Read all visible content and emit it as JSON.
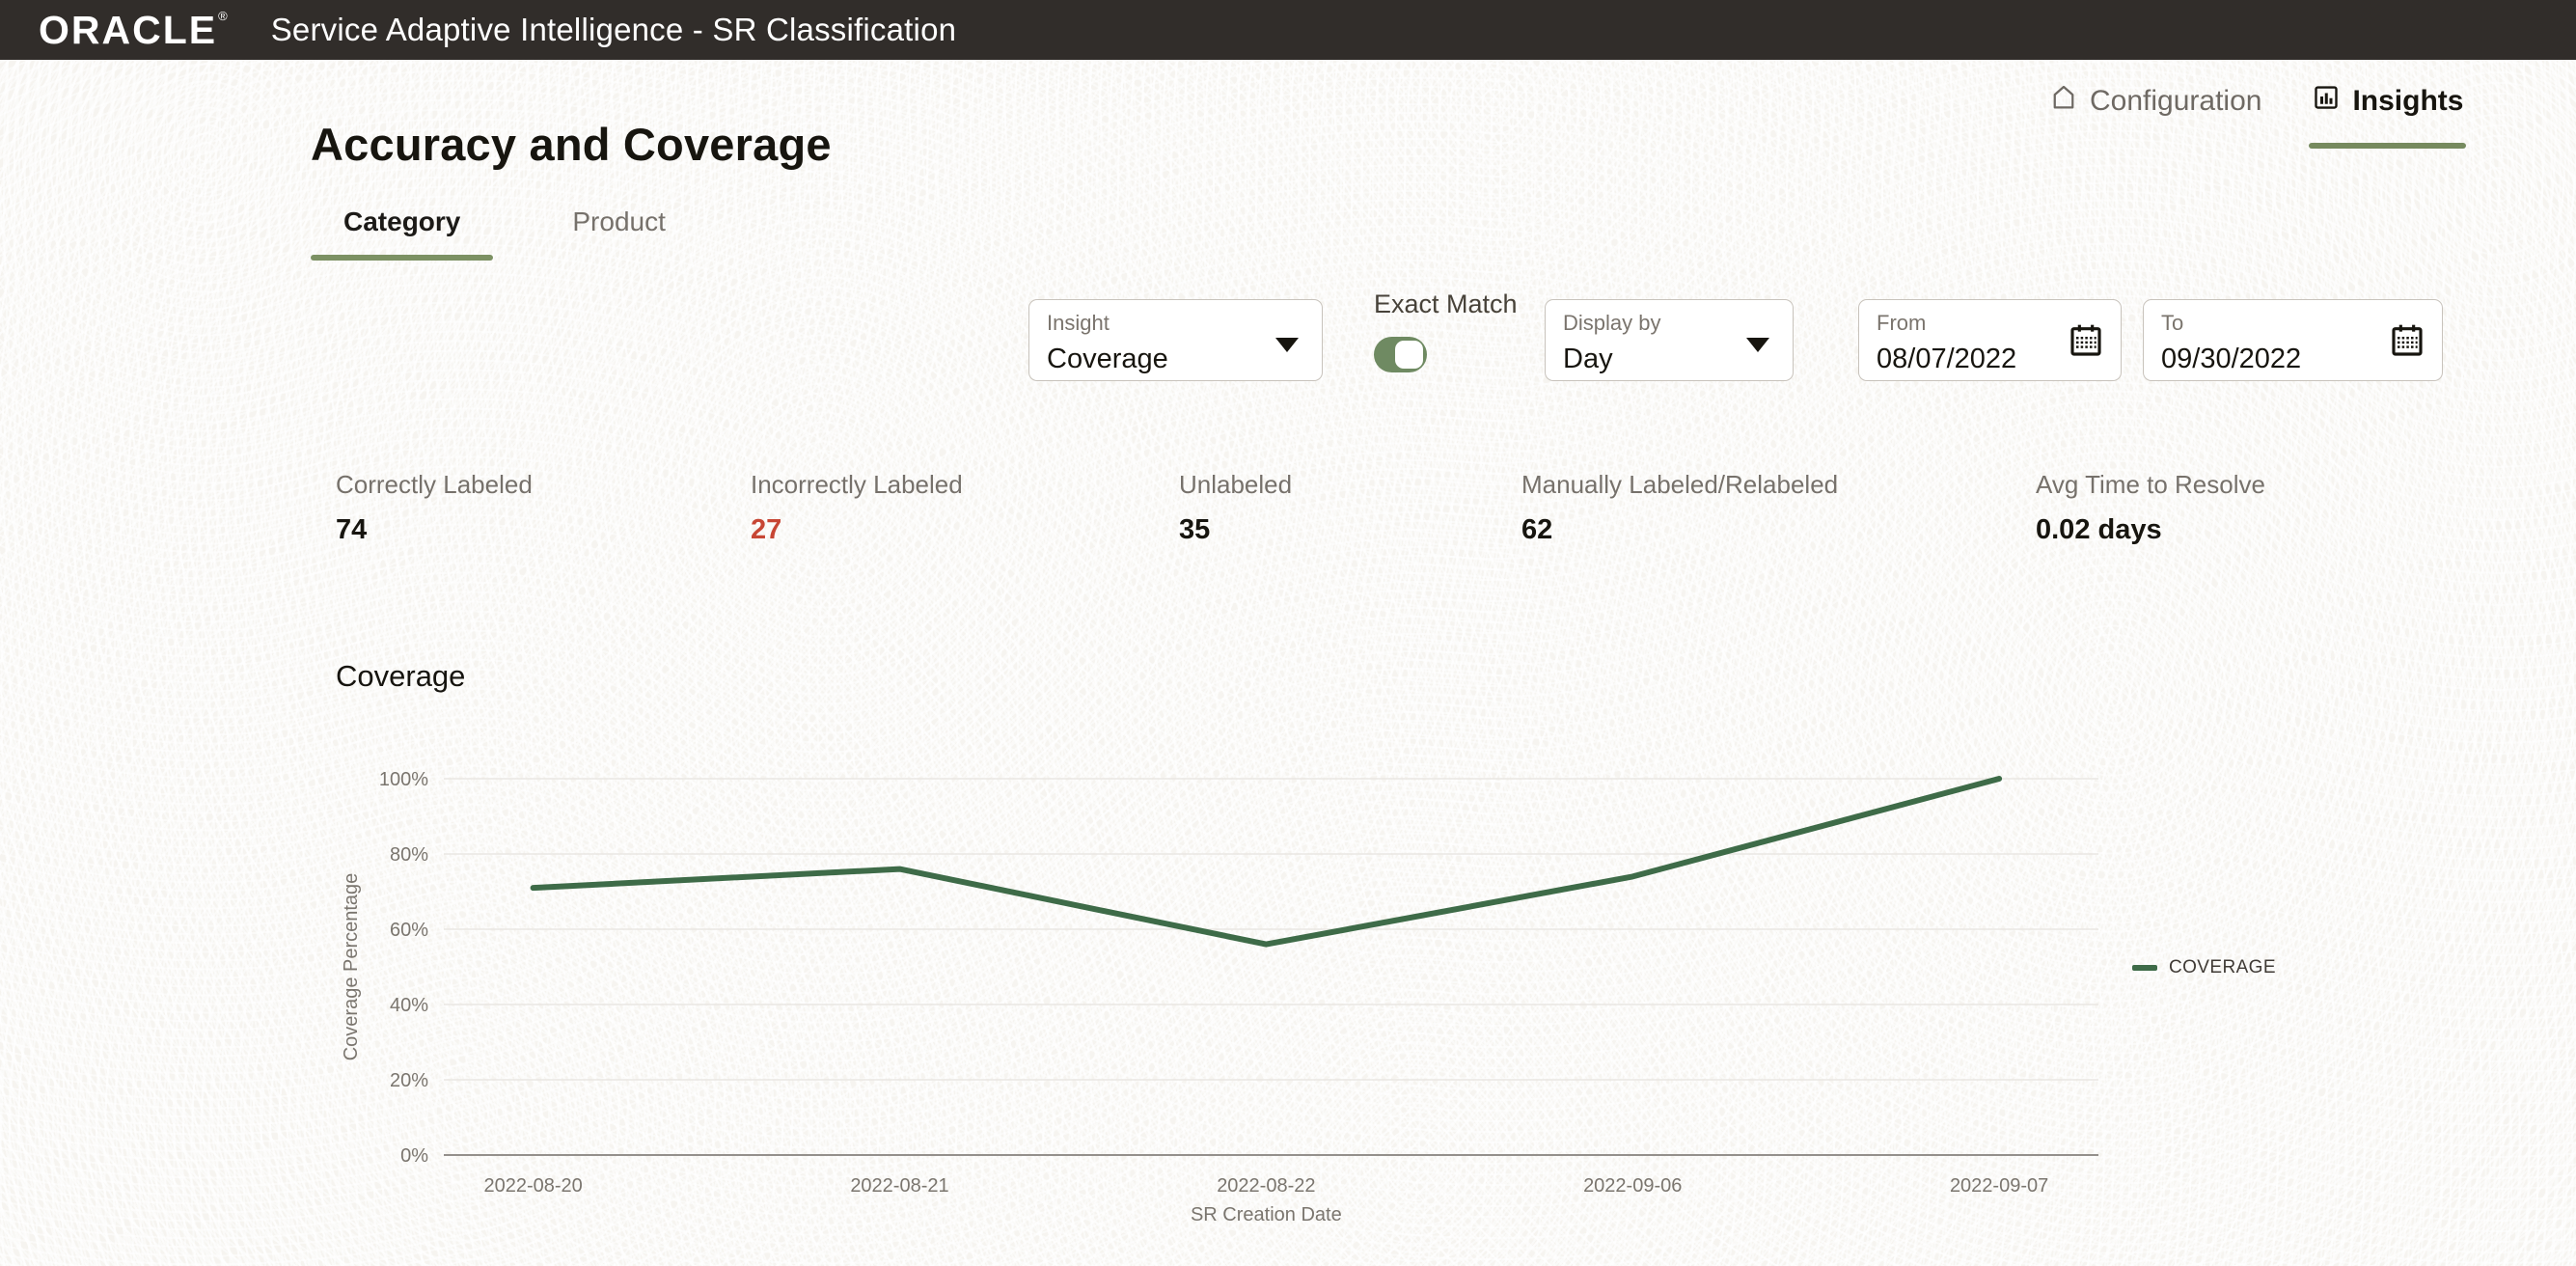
{
  "colors": {
    "header_bg": "#312D2A",
    "accent_green": "#768A5E",
    "line_green": "#3E6B48",
    "toggle_green": "#6F8A62",
    "negative_red": "#C74634"
  },
  "header": {
    "brand": "ORACLE",
    "registered": "®",
    "app_title": "Service Adaptive Intelligence - SR Classification"
  },
  "nav": {
    "configuration": {
      "label": "Configuration"
    },
    "insights": {
      "label": "Insights"
    }
  },
  "page": {
    "title": "Accuracy and Coverage",
    "tabs": {
      "category": "Category",
      "product": "Product"
    }
  },
  "filters": {
    "insight": {
      "label": "Insight",
      "value": "Coverage"
    },
    "exact_match": {
      "label": "Exact Match",
      "on": true
    },
    "display_by": {
      "label": "Display by",
      "value": "Day"
    },
    "date_from": {
      "label": "From",
      "value": "08/07/2022"
    },
    "date_to": {
      "label": "To",
      "value": "09/30/2022"
    }
  },
  "stats": [
    {
      "label": "Correctly Labeled",
      "value": "74"
    },
    {
      "label": "Incorrectly Labeled",
      "value": "27"
    },
    {
      "label": "Unlabeled",
      "value": "35"
    },
    {
      "label": "Manually Labeled/Relabeled",
      "value": "62"
    },
    {
      "label": "Avg Time to Resolve",
      "value": "0.02 days"
    }
  ],
  "chart_data": {
    "type": "line",
    "title": "Coverage",
    "x": [
      "2022-08-20",
      "2022-08-21",
      "2022-08-22",
      "2022-09-06",
      "2022-09-07"
    ],
    "series": [
      {
        "name": "COVERAGE",
        "values": [
          71,
          76,
          56,
          74,
          100
        ]
      }
    ],
    "xlabel": "SR Creation Date",
    "ylabel": "Coverage Percentage",
    "ylim": [
      0,
      100
    ],
    "yticks": [
      "0%",
      "20%",
      "40%",
      "60%",
      "80%",
      "100%"
    ],
    "grid": true,
    "legend_position": "right",
    "line_color": "#3E6B48"
  }
}
